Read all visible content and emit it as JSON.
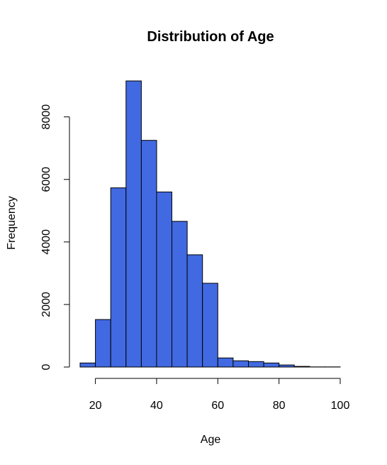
{
  "chart_data": {
    "type": "bar",
    "title": "Distribution of Age",
    "xlabel": "Age",
    "ylabel": "Frequency",
    "bar_color": "#4169E1",
    "xlim": [
      15,
      100
    ],
    "ylim": [
      0,
      9150
    ],
    "xticks": [
      20,
      40,
      60,
      80,
      100
    ],
    "yticks": [
      0,
      2000,
      4000,
      6000,
      8000
    ],
    "bins": [
      {
        "x0": 15,
        "x1": 20,
        "count": 130
      },
      {
        "x0": 20,
        "x1": 25,
        "count": 1520
      },
      {
        "x0": 25,
        "x1": 30,
        "count": 5730
      },
      {
        "x0": 30,
        "x1": 35,
        "count": 9150
      },
      {
        "x0": 35,
        "x1": 40,
        "count": 7250
      },
      {
        "x0": 40,
        "x1": 45,
        "count": 5600
      },
      {
        "x0": 45,
        "x1": 50,
        "count": 4660
      },
      {
        "x0": 50,
        "x1": 55,
        "count": 3590
      },
      {
        "x0": 55,
        "x1": 60,
        "count": 2680
      },
      {
        "x0": 60,
        "x1": 65,
        "count": 290
      },
      {
        "x0": 65,
        "x1": 70,
        "count": 200
      },
      {
        "x0": 70,
        "x1": 75,
        "count": 175
      },
      {
        "x0": 75,
        "x1": 80,
        "count": 130
      },
      {
        "x0": 80,
        "x1": 85,
        "count": 65
      },
      {
        "x0": 85,
        "x1": 90,
        "count": 20
      },
      {
        "x0": 90,
        "x1": 95,
        "count": 5
      },
      {
        "x0": 95,
        "x1": 100,
        "count": 5
      }
    ]
  }
}
